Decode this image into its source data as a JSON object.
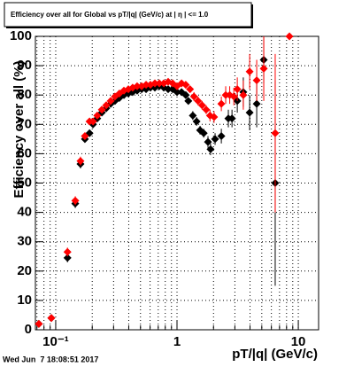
{
  "chart_data": {
    "type": "scatter",
    "title": "Efficiency over all for Global vs pT/|q| (GeV/c) at | η | <= 1.0",
    "x_label": "pT/|q| (GeV/c)",
    "y_label": "Efficiency over all (%)",
    "timestamp": "Wed Jun  7 18:08:51 2017",
    "xscale": "log",
    "grid": true,
    "xlim": [
      0.068,
      14.7
    ],
    "ylim": [
      0,
      100
    ],
    "xticks": [
      {
        "value": 0.1,
        "label": "10⁻¹"
      },
      1,
      10
    ],
    "xminorticks": [
      0.07,
      0.08,
      0.09,
      0.2,
      0.3,
      0.4,
      0.5,
      0.6,
      0.7,
      0.8,
      0.9,
      2,
      3,
      4,
      5,
      6,
      7,
      8,
      9
    ],
    "yticks": [
      0,
      10,
      20,
      30,
      40,
      50,
      60,
      70,
      80,
      90,
      100
    ],
    "series": [
      {
        "color": "#000000",
        "x": [
          0.0726,
          0.092,
          0.125,
          0.145,
          0.16,
          0.174,
          0.19,
          0.203,
          0.22,
          0.24,
          0.261,
          0.284,
          0.308,
          0.335,
          0.365,
          0.397,
          0.431,
          0.469,
          0.511,
          0.556,
          0.604,
          0.657,
          0.715,
          0.778,
          0.845,
          0.92,
          1.0,
          1.09,
          1.18,
          1.24,
          1.35,
          1.45,
          1.55,
          1.66,
          1.8,
          1.89,
          2.06,
          2.32,
          2.65,
          2.84,
          3.14,
          3.52,
          3.97,
          4.54,
          5.19,
          6.45
        ],
        "values": [
          2,
          4,
          24.5,
          43,
          56.5,
          65,
          67,
          70,
          72,
          74,
          75.5,
          77,
          78,
          79,
          80,
          80.5,
          81,
          81.5,
          82,
          82,
          82.5,
          82.5,
          83,
          82.5,
          82,
          82,
          81,
          81,
          80,
          78,
          73,
          71,
          68,
          67,
          64,
          61.5,
          65,
          66,
          72,
          72,
          78,
          81,
          74,
          77,
          92,
          50
        ],
        "errors": [
          1,
          1,
          1.5,
          1.5,
          1.5,
          1,
          1,
          1,
          1,
          1,
          1,
          1,
          1,
          1,
          1,
          1,
          1,
          1,
          1,
          1,
          1,
          1,
          1,
          1,
          1,
          1,
          1,
          1,
          1,
          1,
          1.5,
          1.5,
          1.5,
          1.5,
          2,
          2,
          2,
          2.5,
          3,
          3,
          4,
          5,
          6,
          8,
          8,
          35
        ]
      },
      {
        "color": "#ff0000",
        "x": [
          0.0726,
          0.092,
          0.125,
          0.145,
          0.16,
          0.174,
          0.19,
          0.203,
          0.22,
          0.24,
          0.261,
          0.284,
          0.308,
          0.335,
          0.365,
          0.397,
          0.431,
          0.469,
          0.511,
          0.556,
          0.604,
          0.657,
          0.715,
          0.778,
          0.845,
          0.92,
          1.0,
          1.09,
          1.18,
          1.28,
          1.38,
          1.49,
          1.61,
          1.74,
          1.87,
          2.02,
          2.32,
          2.52,
          2.72,
          2.94,
          3.14,
          3.52,
          3.97,
          4.54,
          5.19,
          6.45,
          8.45
        ],
        "values": [
          2,
          4,
          26.5,
          44,
          57.5,
          66,
          71,
          71,
          73,
          75,
          76.5,
          78,
          79.5,
          80.5,
          81.5,
          82,
          82.5,
          83,
          83,
          83.5,
          83.5,
          84,
          84,
          84,
          84.5,
          84,
          83,
          84,
          83.5,
          82,
          79.5,
          78,
          76.5,
          75,
          73,
          72.5,
          77,
          80,
          80,
          79.5,
          82,
          80,
          88,
          85,
          89,
          67,
          100
        ],
        "errors": [
          1,
          1,
          1.5,
          1.5,
          1.5,
          1,
          1,
          1,
          1,
          1,
          1,
          1,
          1,
          1,
          1,
          1,
          1,
          1,
          1,
          1,
          1,
          1,
          1,
          1,
          1,
          1,
          1,
          1,
          1,
          1,
          1.5,
          1.5,
          1.5,
          1.5,
          2,
          2,
          2.5,
          3,
          3,
          3,
          4,
          5,
          6,
          7,
          11,
          27,
          0
        ]
      }
    ]
  }
}
